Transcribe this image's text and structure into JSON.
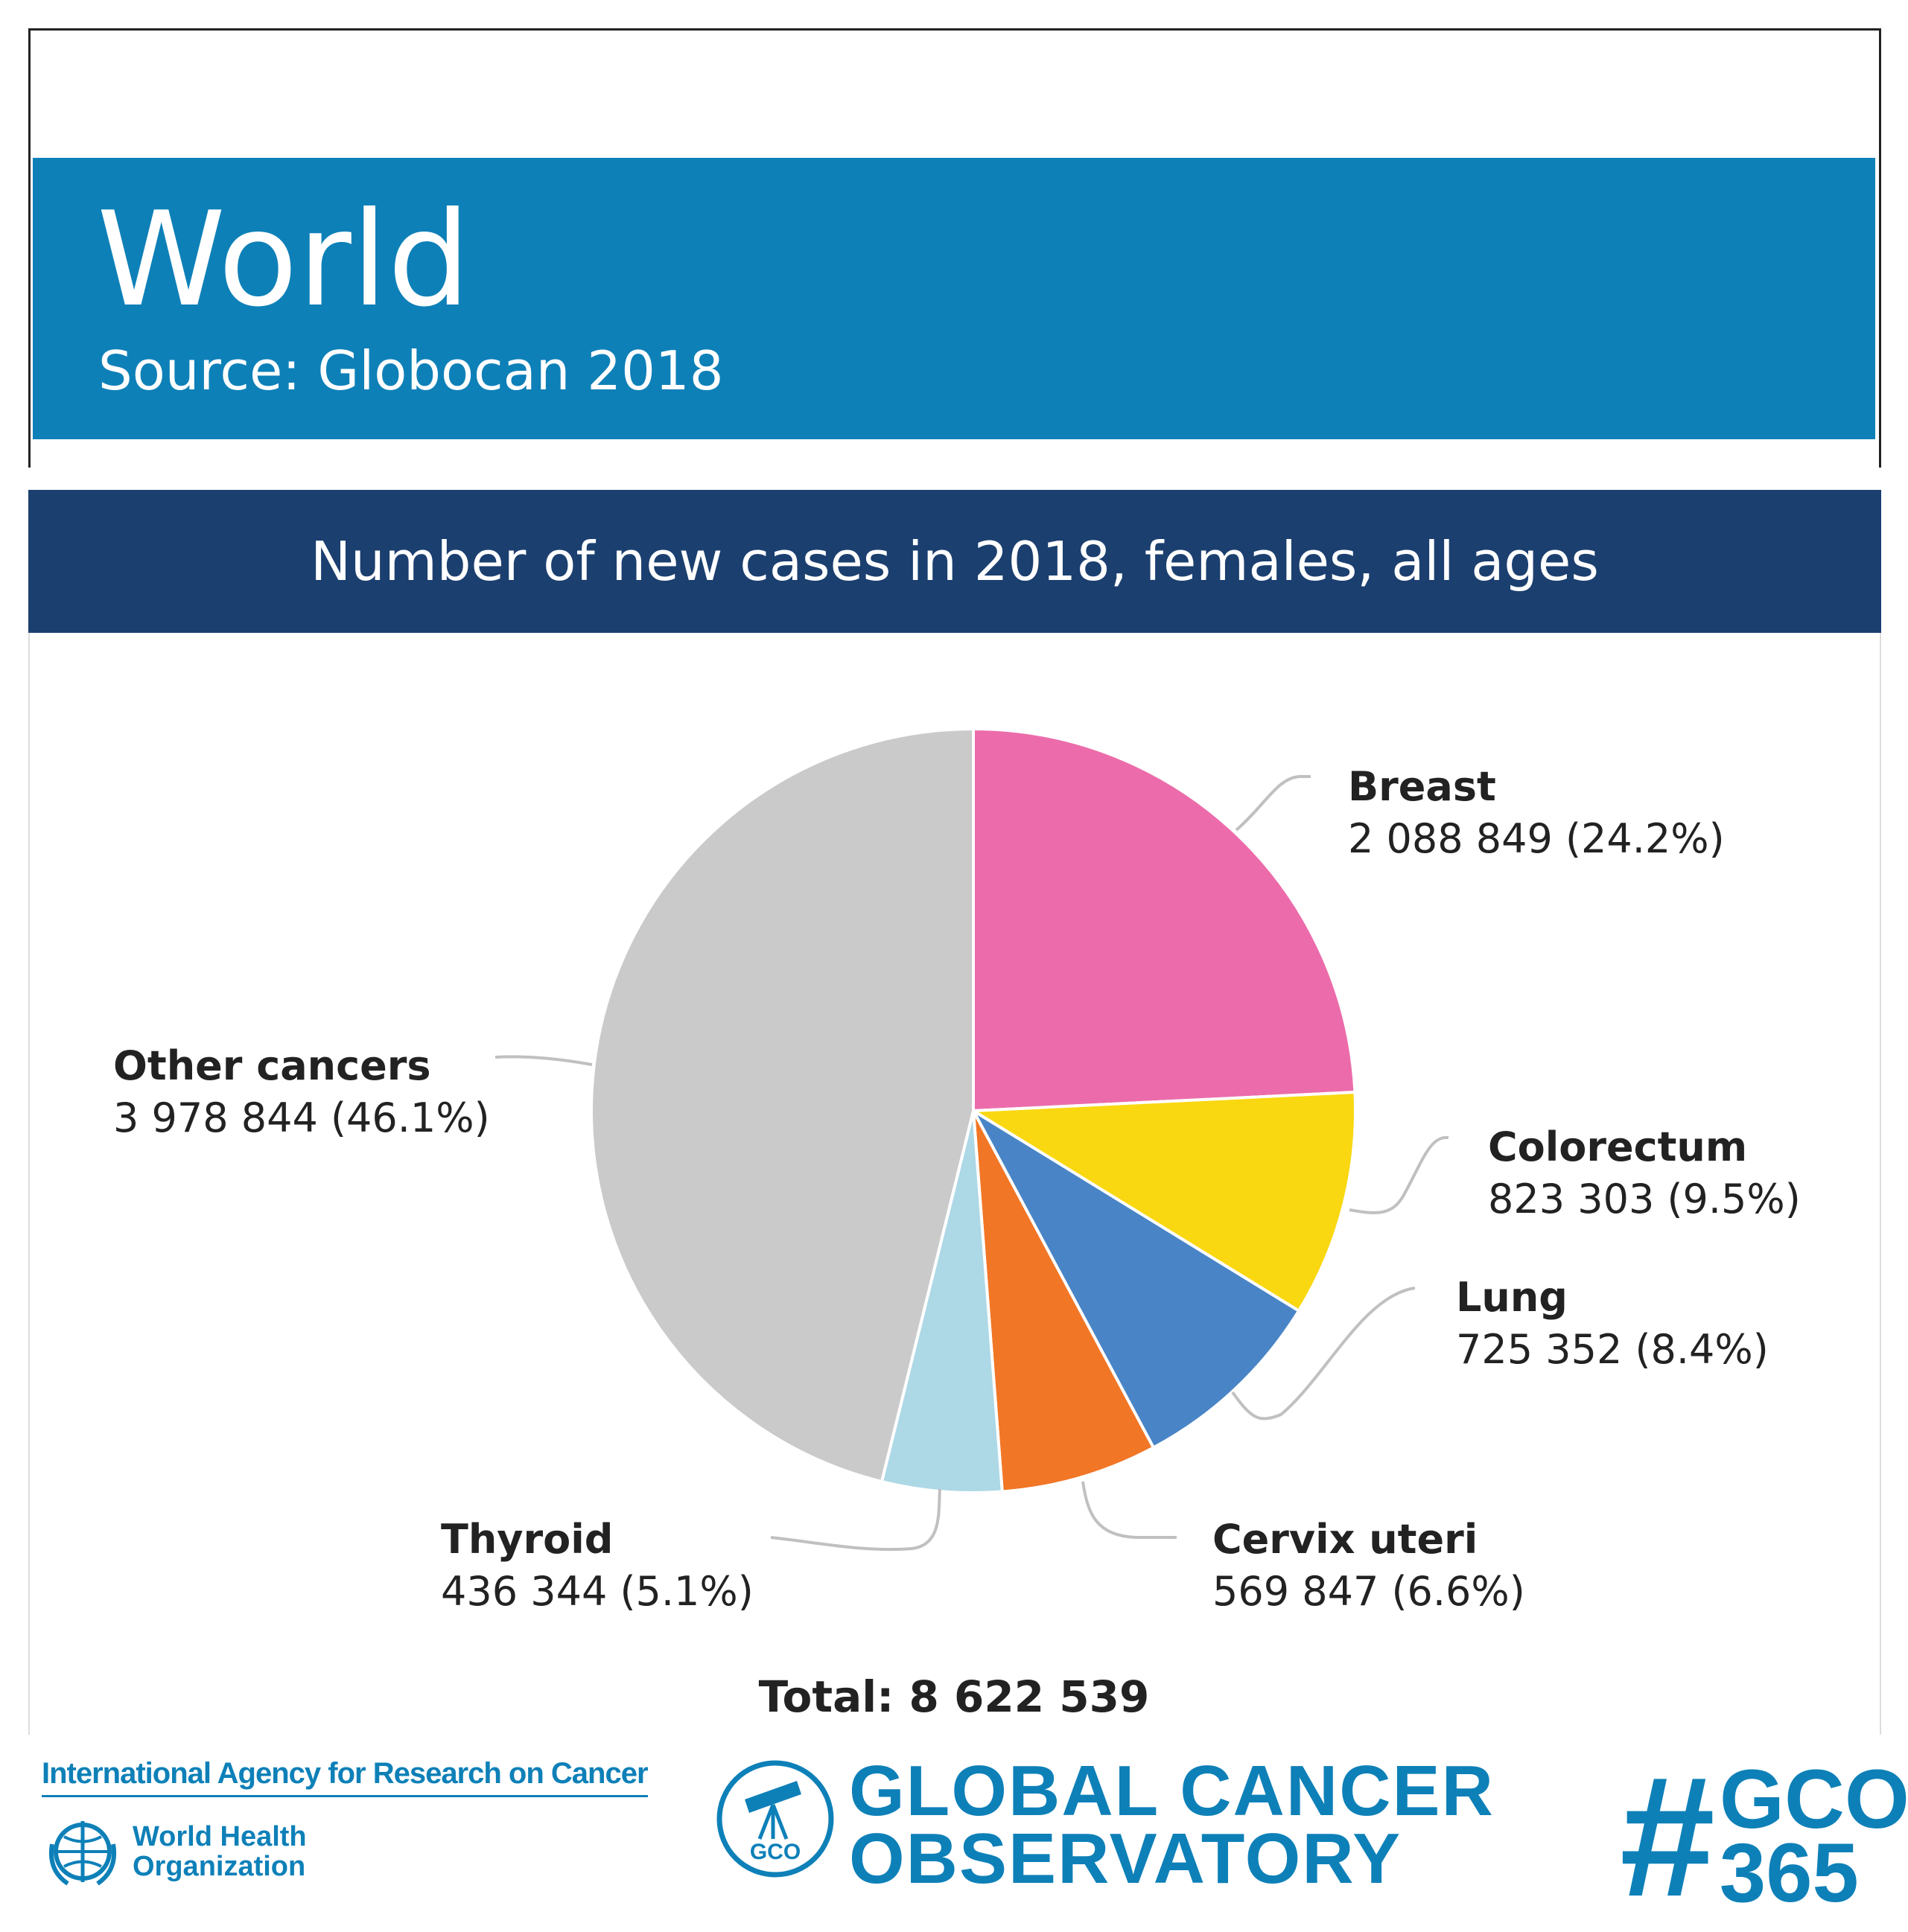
{
  "header": {
    "region": "World",
    "source": "Source: Globocan 2018"
  },
  "subtitle": "Number of new cases in 2018, females, all ages",
  "chart_data": {
    "type": "pie",
    "title": "Number of new cases in 2018, females, all ages",
    "total_label": "Total: 8 622 539",
    "total": 8622539,
    "slices": [
      {
        "name": "Breast",
        "value": 2088849,
        "value_label": "2 088 849 (24.2%)",
        "percent": 24.2,
        "color": "#ec6cab"
      },
      {
        "name": "Colorectum",
        "value": 823303,
        "value_label": "823 303 (9.5%)",
        "percent": 9.5,
        "color": "#f9d811"
      },
      {
        "name": "Lung",
        "value": 725352,
        "value_label": "725 352 (8.4%)",
        "percent": 8.4,
        "color": "#4985c6"
      },
      {
        "name": "Cervix uteri",
        "value": 569847,
        "value_label": "569 847 (6.6%)",
        "percent": 6.6,
        "color": "#f17626"
      },
      {
        "name": "Thyroid",
        "value": 436344,
        "value_label": "436 344 (5.1%)",
        "percent": 5.1,
        "color": "#add8e6"
      },
      {
        "name": "Other cancers",
        "value": 3978844,
        "value_label": "3 978 844 (46.1%)",
        "percent": 46.1,
        "color": "#c9cac9"
      }
    ]
  },
  "footer": {
    "iarc": "International Agency for Research on Cancer",
    "who_line1": "World Health",
    "who_line2": "Organization",
    "gco_line1": "GLOBAL CANCER",
    "gco_line2": "OBSERVATORY",
    "gco_badge": "GCO",
    "hashtag_symbol": "#",
    "hashtag_line1": "GCO",
    "hashtag_line2": "365"
  }
}
